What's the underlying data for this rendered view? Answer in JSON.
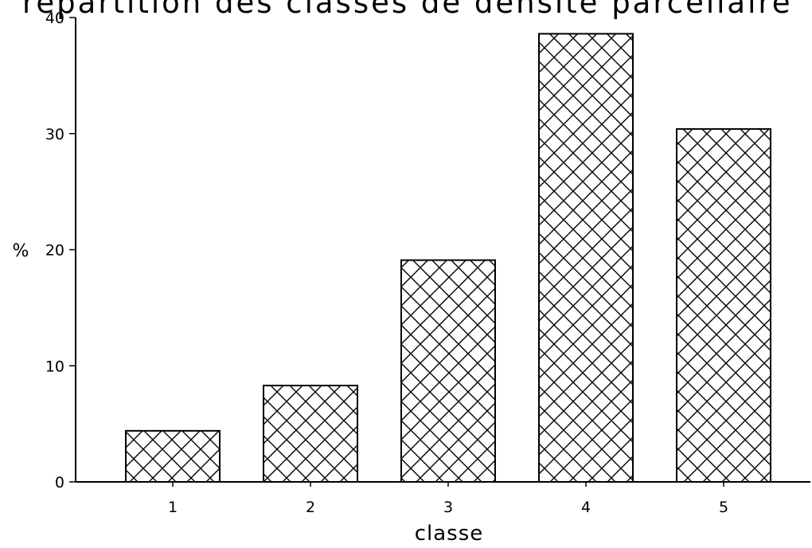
{
  "chart_data": {
    "type": "bar",
    "title": "répartition des classes de densité parcellaire",
    "xlabel": "classe",
    "ylabel": "%",
    "categories": [
      "1",
      "2",
      "3",
      "4",
      "5"
    ],
    "values": [
      4.4,
      8.3,
      19.1,
      38.6,
      30.4
    ],
    "ylim": [
      0,
      40
    ],
    "yticks": [
      "0",
      "10",
      "20",
      "30",
      "40"
    ],
    "grid": false,
    "legend": "none",
    "bar_fill": "crosshatch",
    "colors": {
      "bar_stroke": "#000000",
      "background": "#ffffff"
    }
  }
}
